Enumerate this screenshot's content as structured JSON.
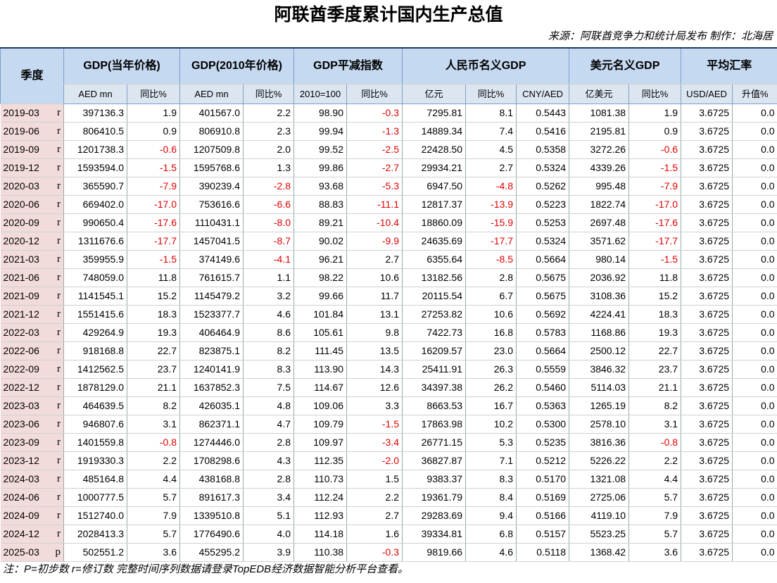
{
  "header": {
    "title": "阿联酋季度累计国内生产总值",
    "source": "来源：阿联酋竞争力和统计局发布  制作：北海居"
  },
  "table": {
    "corner": "季度",
    "groups": [
      "GDP(当年价格)",
      "GDP(2010年价格)",
      "GDP平减指数",
      "人民币名义GDP",
      "美元名义GDP",
      "平均汇率"
    ],
    "subheaders": [
      "AED mn",
      "同比%",
      "AED mn",
      "同比%",
      "2010=100",
      "同比%",
      "亿元",
      "同比%",
      "CNY/AED",
      "亿美元",
      "同比%",
      "USD/AED",
      "升值%"
    ],
    "rows": [
      [
        "2019-03",
        "r",
        "397136.3",
        "1.9",
        "401567.0",
        "2.2",
        "98.90",
        "-0.3",
        "7295.81",
        "8.1",
        "0.5443",
        "1081.38",
        "1.9",
        "3.6725",
        "0.0"
      ],
      [
        "2019-06",
        "r",
        "806410.5",
        "0.9",
        "806910.8",
        "2.3",
        "99.94",
        "-1.3",
        "14889.34",
        "7.4",
        "0.5416",
        "2195.81",
        "0.9",
        "3.6725",
        "0.0"
      ],
      [
        "2019-09",
        "r",
        "1201738.3",
        "-0.6",
        "1207509.8",
        "2.0",
        "99.52",
        "-2.5",
        "22428.50",
        "4.5",
        "0.5358",
        "3272.26",
        "-0.6",
        "3.6725",
        "0.0"
      ],
      [
        "2019-12",
        "r",
        "1593594.0",
        "-1.5",
        "1595768.6",
        "1.3",
        "99.86",
        "-2.7",
        "29934.21",
        "2.7",
        "0.5324",
        "4339.26",
        "-1.5",
        "3.6725",
        "0.0"
      ],
      [
        "2020-03",
        "r",
        "365590.7",
        "-7.9",
        "390239.4",
        "-2.8",
        "93.68",
        "-5.3",
        "6947.50",
        "-4.8",
        "0.5262",
        "995.48",
        "-7.9",
        "3.6725",
        "0.0"
      ],
      [
        "2020-06",
        "r",
        "669402.0",
        "-17.0",
        "753616.6",
        "-6.6",
        "88.83",
        "-11.1",
        "12817.37",
        "-13.9",
        "0.5223",
        "1822.74",
        "-17.0",
        "3.6725",
        "0.0"
      ],
      [
        "2020-09",
        "r",
        "990650.4",
        "-17.6",
        "1110431.1",
        "-8.0",
        "89.21",
        "-10.4",
        "18860.09",
        "-15.9",
        "0.5253",
        "2697.48",
        "-17.6",
        "3.6725",
        "0.0"
      ],
      [
        "2020-12",
        "r",
        "1311676.6",
        "-17.7",
        "1457041.5",
        "-8.7",
        "90.02",
        "-9.9",
        "24635.69",
        "-17.7",
        "0.5324",
        "3571.62",
        "-17.7",
        "3.6725",
        "0.0"
      ],
      [
        "2021-03",
        "r",
        "359955.9",
        "-1.5",
        "374149.6",
        "-4.1",
        "96.21",
        "2.7",
        "6355.64",
        "-8.5",
        "0.5664",
        "980.14",
        "-1.5",
        "3.6725",
        "0.0"
      ],
      [
        "2021-06",
        "r",
        "748059.0",
        "11.8",
        "761615.7",
        "1.1",
        "98.22",
        "10.6",
        "13182.56",
        "2.8",
        "0.5675",
        "2036.92",
        "11.8",
        "3.6725",
        "0.0"
      ],
      [
        "2021-09",
        "r",
        "1141545.1",
        "15.2",
        "1145479.2",
        "3.2",
        "99.66",
        "11.7",
        "20115.54",
        "6.7",
        "0.5675",
        "3108.36",
        "15.2",
        "3.6725",
        "0.0"
      ],
      [
        "2021-12",
        "r",
        "1551415.6",
        "18.3",
        "1523377.7",
        "4.6",
        "101.84",
        "13.1",
        "27253.82",
        "10.6",
        "0.5692",
        "4224.41",
        "18.3",
        "3.6725",
        "0.0"
      ],
      [
        "2022-03",
        "r",
        "429264.9",
        "19.3",
        "406464.9",
        "8.6",
        "105.61",
        "9.8",
        "7422.73",
        "16.8",
        "0.5783",
        "1168.86",
        "19.3",
        "3.6725",
        "0.0"
      ],
      [
        "2022-06",
        "r",
        "918168.8",
        "22.7",
        "823875.1",
        "8.2",
        "111.45",
        "13.5",
        "16209.57",
        "23.0",
        "0.5664",
        "2500.12",
        "22.7",
        "3.6725",
        "0.0"
      ],
      [
        "2022-09",
        "r",
        "1412562.5",
        "23.7",
        "1240141.9",
        "8.3",
        "113.90",
        "14.3",
        "25411.91",
        "26.3",
        "0.5559",
        "3846.32",
        "23.7",
        "3.6725",
        "0.0"
      ],
      [
        "2022-12",
        "r",
        "1878129.0",
        "21.1",
        "1637852.3",
        "7.5",
        "114.67",
        "12.6",
        "34397.38",
        "26.2",
        "0.5460",
        "5114.03",
        "21.1",
        "3.6725",
        "0.0"
      ],
      [
        "2023-03",
        "r",
        "464639.5",
        "8.2",
        "426035.1",
        "4.8",
        "109.06",
        "3.3",
        "8663.53",
        "16.7",
        "0.5363",
        "1265.19",
        "8.2",
        "3.6725",
        "0.0"
      ],
      [
        "2023-06",
        "r",
        "946807.6",
        "3.1",
        "862371.1",
        "4.7",
        "109.79",
        "-1.5",
        "17863.98",
        "10.2",
        "0.5300",
        "2578.10",
        "3.1",
        "3.6725",
        "0.0"
      ],
      [
        "2023-09",
        "r",
        "1401559.8",
        "-0.8",
        "1274446.0",
        "2.8",
        "109.97",
        "-3.4",
        "26771.15",
        "5.3",
        "0.5235",
        "3816.36",
        "-0.8",
        "3.6725",
        "0.0"
      ],
      [
        "2023-12",
        "r",
        "1919330.3",
        "2.2",
        "1708298.6",
        "4.3",
        "112.35",
        "-2.0",
        "36827.87",
        "7.1",
        "0.5212",
        "5226.22",
        "2.2",
        "3.6725",
        "0.0"
      ],
      [
        "2024-03",
        "r",
        "485164.8",
        "4.4",
        "438168.8",
        "2.8",
        "110.73",
        "1.5",
        "9383.37",
        "8.3",
        "0.5170",
        "1321.08",
        "4.4",
        "3.6725",
        "0.0"
      ],
      [
        "2024-06",
        "r",
        "1000777.5",
        "5.7",
        "891617.3",
        "3.4",
        "112.24",
        "2.2",
        "19361.79",
        "8.4",
        "0.5169",
        "2725.06",
        "5.7",
        "3.6725",
        "0.0"
      ],
      [
        "2024-09",
        "r",
        "1512740.0",
        "7.9",
        "1339510.8",
        "5.1",
        "112.93",
        "2.7",
        "29283.69",
        "9.4",
        "0.5166",
        "4119.10",
        "7.9",
        "3.6725",
        "0.0"
      ],
      [
        "2024-12",
        "r",
        "2028413.3",
        "5.7",
        "1776490.6",
        "4.0",
        "114.18",
        "1.6",
        "39334.81",
        "6.8",
        "0.5157",
        "5523.25",
        "5.7",
        "3.6725",
        "0.0"
      ],
      [
        "2025-03",
        "p",
        "502551.2",
        "3.6",
        "455295.2",
        "3.9",
        "110.38",
        "-0.3",
        "9819.66",
        "4.6",
        "0.5118",
        "1368.42",
        "3.6",
        "3.6725",
        "0.0"
      ]
    ]
  },
  "footer": {
    "note": "注：P=初步数 r=修订数 完整时间序列数据请登录TopEDB经济数据智能分析平台查看。"
  }
}
